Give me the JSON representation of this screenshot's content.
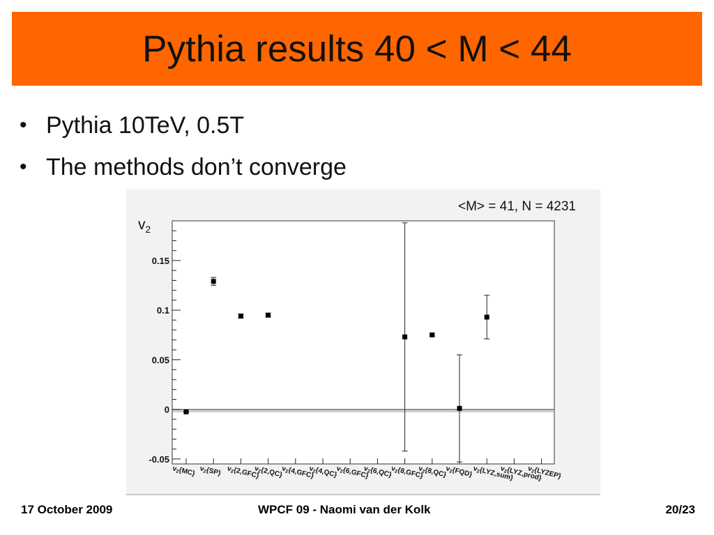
{
  "slide": {
    "title": "Pythia results 40 < M < 44",
    "bullets": [
      "Pythia 10TeV, 0.5T",
      "The methods don’t converge"
    ],
    "bullet_symbol": "•"
  },
  "footer": {
    "date": "17 October 2009",
    "center": "WPCF 09 - Naomi van der Kolk",
    "page": "20/23"
  },
  "colors": {
    "title_bar": "#ff6600",
    "plot_background": "#f2f2f2",
    "marker": "#000000",
    "zero_band": "#cccccc"
  },
  "chart_data": {
    "type": "scatter",
    "title": "<M> = 41, N = 4231",
    "ylabel": "v",
    "ylabel_sub": "2",
    "xlabel": "",
    "ylim": [
      -0.055,
      0.19
    ],
    "yticks": [
      {
        "value": 0.15,
        "label": "0.15"
      },
      {
        "value": 0.1,
        "label": "0.1"
      },
      {
        "value": 0.05,
        "label": "0.05"
      },
      {
        "value": 0,
        "label": "0"
      },
      {
        "value": -0.05,
        "label": "-0.05"
      }
    ],
    "zero_band": [
      -0.003,
      0.0
    ],
    "grid": false,
    "categories": [
      {
        "base": "v",
        "sub": "2",
        "tag": "{MC}"
      },
      {
        "base": "v",
        "sub": "2",
        "tag": "{SP}"
      },
      {
        "base": "v",
        "sub": "2",
        "tag": "{2,GFC}"
      },
      {
        "base": "v",
        "sub": "2",
        "tag": "{2,QC}"
      },
      {
        "base": "v",
        "sub": "2",
        "tag": "{4,GFC}"
      },
      {
        "base": "v",
        "sub": "2",
        "tag": "{4,QC}"
      },
      {
        "base": "v",
        "sub": "2",
        "tag": "{6,GFC}"
      },
      {
        "base": "v",
        "sub": "2",
        "tag": "{6,QC}"
      },
      {
        "base": "v",
        "sub": "2",
        "tag": "{8,GFC}"
      },
      {
        "base": "v",
        "sub": "2",
        "tag": "{8,QC}"
      },
      {
        "base": "v",
        "sub": "2",
        "tag": "{FQD}"
      },
      {
        "base": "v",
        "sub": "2",
        "tag": "{LYZ,sum}"
      },
      {
        "base": "v",
        "sub": "2",
        "tag": "{LYZ,prod}"
      },
      {
        "base": "v",
        "sub": "2",
        "tag": "{LYZEP}"
      }
    ],
    "series": [
      {
        "points": [
          {
            "category": "{MC}",
            "y": -0.0025,
            "err": 0.0005
          },
          {
            "category": "{SP}",
            "y": 0.129,
            "err": 0.004
          },
          {
            "category": "{2,GFC}",
            "y": 0.094,
            "err": 0.002
          },
          {
            "category": "{2,QC}",
            "y": 0.095,
            "err": 0.002
          },
          {
            "category": "{8,GFC}",
            "y": 0.073,
            "err": 0.115
          },
          {
            "category": "{8,QC}",
            "y": 0.075,
            "err": 0.001
          },
          {
            "category": "{FQD}",
            "y": 0.001,
            "err": 0.054
          },
          {
            "category": "{LYZ,sum}",
            "y": 0.093,
            "err": 0.022
          }
        ]
      }
    ]
  }
}
